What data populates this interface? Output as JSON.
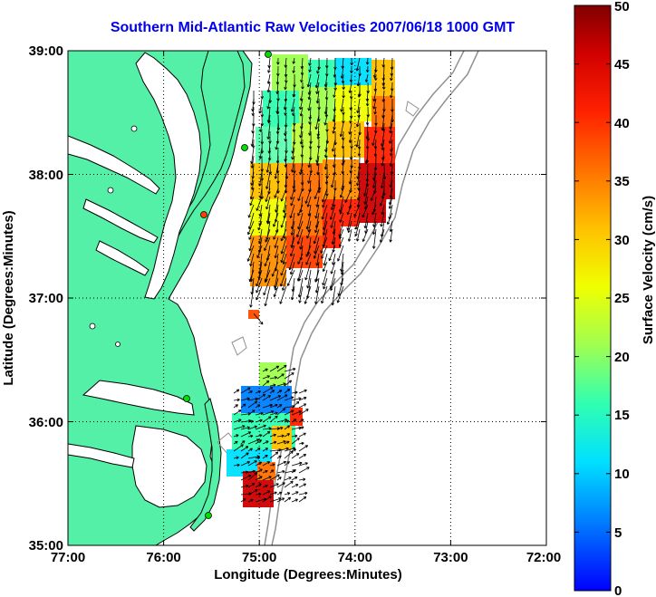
{
  "title": "Southern Mid-Atlantic Raw Velocities 2007/06/18 1000 GMT",
  "x_axis": {
    "label": "Longitude (Degrees:Minutes)",
    "ticks": [
      "77:00",
      "76:00",
      "75:00",
      "74:00",
      "73:00",
      "72:00"
    ]
  },
  "y_axis": {
    "label": "Latitude (Degrees:Minutes)",
    "ticks": [
      "39:00",
      "38:00",
      "37:00",
      "36:00",
      "35:00"
    ]
  },
  "colorbar": {
    "label": "Surface Velocity (cm/s)",
    "ticks": [
      "50",
      "45",
      "40",
      "35",
      "30",
      "25",
      "20",
      "15",
      "10",
      "5",
      "0"
    ],
    "min": 0,
    "max": 50,
    "colors": [
      "#0000ff",
      "#00a0ff",
      "#00ffff",
      "#40ffa0",
      "#c0ff40",
      "#ffff00",
      "#ffb000",
      "#ff6000",
      "#ff0000",
      "#c00000",
      "#800000"
    ]
  },
  "colors": {
    "land": "#55f0a8",
    "coast": "#000000",
    "bathymetry": "#909090",
    "grid": "#000000",
    "station": "#00e000"
  },
  "map_extent": {
    "lon_min": -77,
    "lon_max": -72,
    "lat_min": 35,
    "lat_max": 39
  }
}
